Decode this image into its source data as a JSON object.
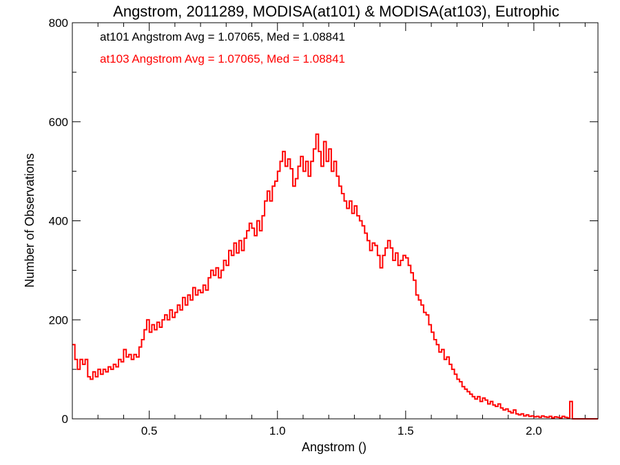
{
  "chart_data": {
    "type": "line",
    "title": "Angstrom, 2011289, MODISA(at101) & MODISA(at103), Eutrophic",
    "xlabel": "Angstrom ()",
    "ylabel": "Number of Observations",
    "xlim": [
      0.2,
      2.25
    ],
    "ylim": [
      0,
      800
    ],
    "x_ticks": [
      {
        "value": 0.5,
        "label": "0.5"
      },
      {
        "value": 1.0,
        "label": "1.0"
      },
      {
        "value": 1.5,
        "label": "1.5"
      },
      {
        "value": 2.0,
        "label": "2.0"
      }
    ],
    "y_ticks": [
      {
        "value": 0,
        "label": "0"
      },
      {
        "value": 200,
        "label": "200"
      },
      {
        "value": 400,
        "label": "400"
      },
      {
        "value": 600,
        "label": "600"
      },
      {
        "value": 800,
        "label": "800"
      }
    ],
    "annotations": [
      {
        "text": "at101 Angstrom Avg = 1.07065, Med = 1.08841",
        "color": "#000000"
      },
      {
        "text": "at103 Angstrom Avg = 1.07065, Med = 1.08841",
        "color": "#ff0000"
      }
    ],
    "grid": false,
    "series": [
      {
        "color": "#ff0000",
        "step": "histogram",
        "points": [
          [
            0.2,
            150
          ],
          [
            0.21,
            120
          ],
          [
            0.22,
            100
          ],
          [
            0.23,
            120
          ],
          [
            0.24,
            110
          ],
          [
            0.25,
            120
          ],
          [
            0.26,
            85
          ],
          [
            0.27,
            80
          ],
          [
            0.28,
            95
          ],
          [
            0.29,
            85
          ],
          [
            0.3,
            100
          ],
          [
            0.31,
            90
          ],
          [
            0.32,
            100
          ],
          [
            0.33,
            95
          ],
          [
            0.34,
            105
          ],
          [
            0.35,
            100
          ],
          [
            0.36,
            110
          ],
          [
            0.37,
            105
          ],
          [
            0.38,
            120
          ],
          [
            0.39,
            115
          ],
          [
            0.4,
            140
          ],
          [
            0.41,
            125
          ],
          [
            0.42,
            130
          ],
          [
            0.43,
            120
          ],
          [
            0.44,
            130
          ],
          [
            0.45,
            125
          ],
          [
            0.46,
            145
          ],
          [
            0.47,
            160
          ],
          [
            0.48,
            180
          ],
          [
            0.49,
            200
          ],
          [
            0.5,
            175
          ],
          [
            0.51,
            190
          ],
          [
            0.52,
            180
          ],
          [
            0.53,
            195
          ],
          [
            0.54,
            185
          ],
          [
            0.55,
            200
          ],
          [
            0.56,
            210
          ],
          [
            0.57,
            200
          ],
          [
            0.58,
            220
          ],
          [
            0.59,
            205
          ],
          [
            0.6,
            215
          ],
          [
            0.61,
            230
          ],
          [
            0.62,
            220
          ],
          [
            0.63,
            245
          ],
          [
            0.64,
            230
          ],
          [
            0.65,
            250
          ],
          [
            0.66,
            240
          ],
          [
            0.67,
            265
          ],
          [
            0.68,
            250
          ],
          [
            0.69,
            260
          ],
          [
            0.7,
            255
          ],
          [
            0.71,
            270
          ],
          [
            0.72,
            260
          ],
          [
            0.73,
            285
          ],
          [
            0.74,
            300
          ],
          [
            0.75,
            290
          ],
          [
            0.76,
            305
          ],
          [
            0.77,
            285
          ],
          [
            0.78,
            300
          ],
          [
            0.79,
            320
          ],
          [
            0.8,
            310
          ],
          [
            0.81,
            340
          ],
          [
            0.82,
            330
          ],
          [
            0.83,
            355
          ],
          [
            0.84,
            335
          ],
          [
            0.85,
            360
          ],
          [
            0.86,
            340
          ],
          [
            0.87,
            365
          ],
          [
            0.88,
            380
          ],
          [
            0.89,
            395
          ],
          [
            0.9,
            385
          ],
          [
            0.91,
            370
          ],
          [
            0.92,
            400
          ],
          [
            0.93,
            380
          ],
          [
            0.94,
            410
          ],
          [
            0.95,
            440
          ],
          [
            0.96,
            460
          ],
          [
            0.97,
            440
          ],
          [
            0.98,
            470
          ],
          [
            0.99,
            480
          ],
          [
            1.0,
            500
          ],
          [
            1.01,
            520
          ],
          [
            1.02,
            540
          ],
          [
            1.03,
            510
          ],
          [
            1.04,
            525
          ],
          [
            1.05,
            505
          ],
          [
            1.06,
            470
          ],
          [
            1.07,
            485
          ],
          [
            1.08,
            510
          ],
          [
            1.09,
            530
          ],
          [
            1.1,
            500
          ],
          [
            1.11,
            520
          ],
          [
            1.12,
            490
          ],
          [
            1.13,
            520
          ],
          [
            1.14,
            545
          ],
          [
            1.15,
            575
          ],
          [
            1.16,
            540
          ],
          [
            1.17,
            510
          ],
          [
            1.18,
            560
          ],
          [
            1.19,
            520
          ],
          [
            1.2,
            545
          ],
          [
            1.21,
            500
          ],
          [
            1.22,
            520
          ],
          [
            1.23,
            490
          ],
          [
            1.24,
            470
          ],
          [
            1.25,
            455
          ],
          [
            1.26,
            440
          ],
          [
            1.27,
            425
          ],
          [
            1.28,
            440
          ],
          [
            1.29,
            415
          ],
          [
            1.3,
            430
          ],
          [
            1.31,
            410
          ],
          [
            1.32,
            400
          ],
          [
            1.33,
            390
          ],
          [
            1.34,
            375
          ],
          [
            1.35,
            360
          ],
          [
            1.36,
            340
          ],
          [
            1.37,
            355
          ],
          [
            1.38,
            350
          ],
          [
            1.39,
            330
          ],
          [
            1.4,
            305
          ],
          [
            1.41,
            330
          ],
          [
            1.42,
            345
          ],
          [
            1.43,
            360
          ],
          [
            1.44,
            345
          ],
          [
            1.45,
            320
          ],
          [
            1.46,
            335
          ],
          [
            1.47,
            310
          ],
          [
            1.48,
            320
          ],
          [
            1.49,
            330
          ],
          [
            1.5,
            325
          ],
          [
            1.51,
            310
          ],
          [
            1.52,
            295
          ],
          [
            1.53,
            280
          ],
          [
            1.54,
            250
          ],
          [
            1.55,
            240
          ],
          [
            1.56,
            230
          ],
          [
            1.57,
            215
          ],
          [
            1.58,
            210
          ],
          [
            1.59,
            190
          ],
          [
            1.6,
            175
          ],
          [
            1.61,
            160
          ],
          [
            1.62,
            150
          ],
          [
            1.63,
            135
          ],
          [
            1.64,
            140
          ],
          [
            1.65,
            120
          ],
          [
            1.66,
            125
          ],
          [
            1.67,
            110
          ],
          [
            1.68,
            100
          ],
          [
            1.69,
            90
          ],
          [
            1.7,
            80
          ],
          [
            1.71,
            75
          ],
          [
            1.72,
            65
          ],
          [
            1.73,
            60
          ],
          [
            1.74,
            55
          ],
          [
            1.75,
            50
          ],
          [
            1.76,
            45
          ],
          [
            1.77,
            40
          ],
          [
            1.78,
            45
          ],
          [
            1.79,
            35
          ],
          [
            1.8,
            42
          ],
          [
            1.81,
            38
          ],
          [
            1.82,
            30
          ],
          [
            1.83,
            35
          ],
          [
            1.84,
            28
          ],
          [
            1.85,
            25
          ],
          [
            1.86,
            30
          ],
          [
            1.87,
            22
          ],
          [
            1.88,
            18
          ],
          [
            1.89,
            20
          ],
          [
            1.9,
            15
          ],
          [
            1.91,
            12
          ],
          [
            1.92,
            18
          ],
          [
            1.93,
            10
          ],
          [
            1.94,
            8
          ],
          [
            1.95,
            10
          ],
          [
            1.96,
            6
          ],
          [
            1.97,
            8
          ],
          [
            1.98,
            5
          ],
          [
            1.99,
            6
          ],
          [
            2.0,
            4
          ],
          [
            2.01,
            5
          ],
          [
            2.02,
            3
          ],
          [
            2.03,
            6
          ],
          [
            2.04,
            4
          ],
          [
            2.05,
            3
          ],
          [
            2.06,
            5
          ],
          [
            2.07,
            2
          ],
          [
            2.08,
            4
          ],
          [
            2.09,
            3
          ],
          [
            2.1,
            2
          ],
          [
            2.11,
            5
          ],
          [
            2.12,
            3
          ],
          [
            2.13,
            2
          ],
          [
            2.14,
            35
          ],
          [
            2.15,
            0
          ],
          [
            2.25,
            0
          ]
        ]
      }
    ]
  }
}
